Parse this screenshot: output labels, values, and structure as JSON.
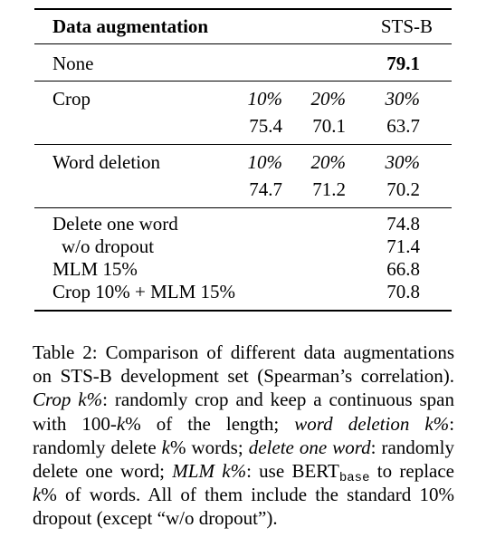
{
  "table": {
    "header": {
      "col1": "Data augmentation",
      "col2": "STS-B"
    },
    "none_row": {
      "label": "None",
      "value": "79.1"
    },
    "crop": {
      "label": "Crop",
      "ratios": [
        "10%",
        "20%",
        "30%"
      ],
      "values": [
        "75.4",
        "70.1",
        "63.7"
      ]
    },
    "word_deletion": {
      "label": "Word deletion",
      "ratios": [
        "10%",
        "20%",
        "30%"
      ],
      "values": [
        "74.7",
        "71.2",
        "70.2"
      ]
    },
    "other_rows": [
      {
        "label": "Delete one word",
        "value": "74.8"
      },
      {
        "label": "w/o dropout",
        "value": "71.4"
      },
      {
        "label": "MLM 15%",
        "value": "66.8"
      },
      {
        "label": "Crop 10% + MLM 15%",
        "value": "70.8"
      }
    ]
  },
  "caption": {
    "lead": "Table 2: Comparison of different data augmentations on STS-B development set (Spearman’s correlation).",
    "crop_term": "Crop k%",
    "crop_desc": ": randomly crop and keep a continuous span with 100-",
    "k1": "k",
    "crop_desc2": "% of the length; ",
    "wd_term": "word deletion k%",
    "wd_desc": ": randomly delete ",
    "k2": "k",
    "wd_desc2": "% words; ",
    "dow_term": "delete one word",
    "dow_desc": ": randomly delete one word; ",
    "mlm_term": "MLM k%",
    "mlm_desc": ": use BERT",
    "bert_sub": "base",
    "mlm_desc2": " to replace ",
    "k3": "k",
    "mlm_desc3": "% of words. All of them include the standard 10% dropout (except “w/o dropout”)."
  }
}
